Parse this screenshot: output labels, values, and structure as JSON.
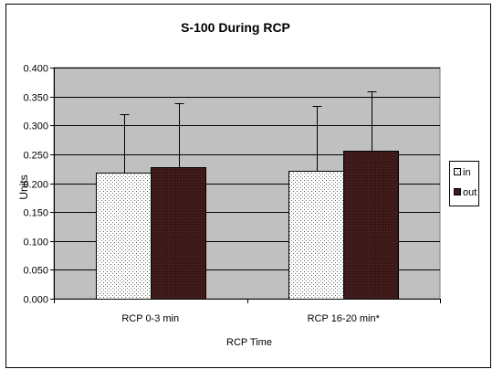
{
  "chart_data": {
    "type": "bar",
    "title": "S-100 During RCP",
    "xlabel": "RCP Time",
    "ylabel": "Units",
    "categories": [
      "RCP 0-3 min",
      "RCP 16-20 min*"
    ],
    "series": [
      {
        "name": "in",
        "values": [
          0.218,
          0.222
        ],
        "error": [
          0.102,
          0.112
        ],
        "fill": "#ffffff",
        "pattern": "dotted"
      },
      {
        "name": "out",
        "values": [
          0.227,
          0.256
        ],
        "error": [
          0.111,
          0.103
        ],
        "fill": "#3b1a1a",
        "pattern": "dark"
      }
    ],
    "ylim": [
      0,
      0.4
    ],
    "yticks": [
      "0.000",
      "0.050",
      "0.100",
      "0.150",
      "0.200",
      "0.250",
      "0.300",
      "0.350",
      "0.400"
    ],
    "grid": true,
    "legend_position": "right",
    "colors": {
      "plot_background": "#c0c0c0",
      "gridline": "#000000"
    }
  }
}
